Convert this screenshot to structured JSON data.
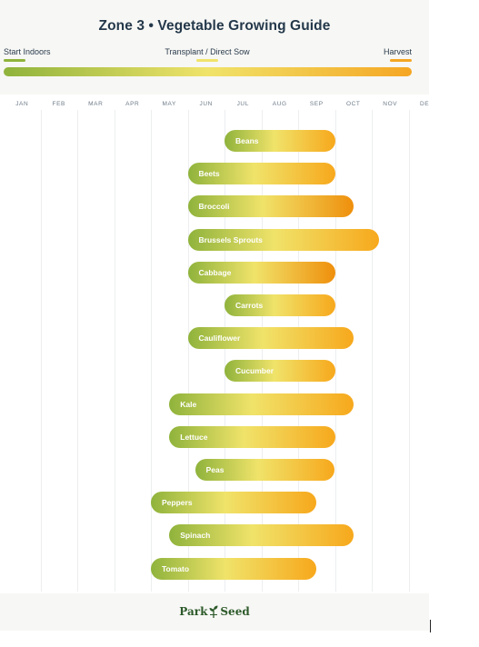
{
  "header": {
    "title": "Zone 3 • Vegetable Growing Guide",
    "stages": {
      "start": {
        "label": "Start Indoors",
        "color": "#8fb33c"
      },
      "transplant": {
        "label": "Transplant / Direct Sow",
        "color": "#f0e36a"
      },
      "harvest": {
        "label": "Harvest",
        "color": "#f5a623"
      }
    }
  },
  "footer": {
    "logo_left": "Park",
    "logo_right": "Seed"
  },
  "chart_data": {
    "type": "bar",
    "title": "Zone 3 • Vegetable Growing Guide",
    "x_axis": [
      "JAN",
      "FEB",
      "MAR",
      "APR",
      "MAY",
      "JUN",
      "JUL",
      "AUG",
      "SEP",
      "OCT",
      "NOV",
      "DEC"
    ],
    "series": [
      {
        "name": "Beans",
        "start_month": 6.0,
        "end_month": 9.0,
        "harvest_color": "#f7a81c"
      },
      {
        "name": "Beets",
        "start_month": 5.0,
        "end_month": 9.0,
        "harvest_color": "#f7a81c"
      },
      {
        "name": "Broccoli",
        "start_month": 5.0,
        "end_month": 9.5,
        "harvest_color": "#ef8f0c"
      },
      {
        "name": "Brussels Sprouts",
        "start_month": 5.0,
        "end_month": 10.2,
        "harvest_color": "#f7a81c"
      },
      {
        "name": "Cabbage",
        "start_month": 5.0,
        "end_month": 9.0,
        "harvest_color": "#ef8f0c"
      },
      {
        "name": "Carrots",
        "start_month": 6.0,
        "end_month": 9.0,
        "harvest_color": "#f7a81c"
      },
      {
        "name": "Cauliflower",
        "start_month": 5.0,
        "end_month": 9.5,
        "harvest_color": "#f7a81c"
      },
      {
        "name": "Cucumber",
        "start_month": 6.0,
        "end_month": 9.0,
        "harvest_color": "#f7a81c"
      },
      {
        "name": "Kale",
        "start_month": 4.5,
        "end_month": 9.5,
        "harvest_color": "#f7a81c"
      },
      {
        "name": "Lettuce",
        "start_month": 4.5,
        "end_month": 9.0,
        "harvest_color": "#f7a81c"
      },
      {
        "name": "Peas",
        "start_month": 5.2,
        "end_month": 9.0,
        "harvest_color": "#f7a81c"
      },
      {
        "name": "Peppers",
        "start_month": 4.0,
        "end_month": 8.5,
        "harvest_color": "#f7a81c"
      },
      {
        "name": "Spinach",
        "start_month": 4.5,
        "end_month": 9.5,
        "harvest_color": "#f7a81c"
      },
      {
        "name": "Tomato",
        "start_month": 4.0,
        "end_month": 8.5,
        "harvest_color": "#f7a81c"
      }
    ]
  }
}
